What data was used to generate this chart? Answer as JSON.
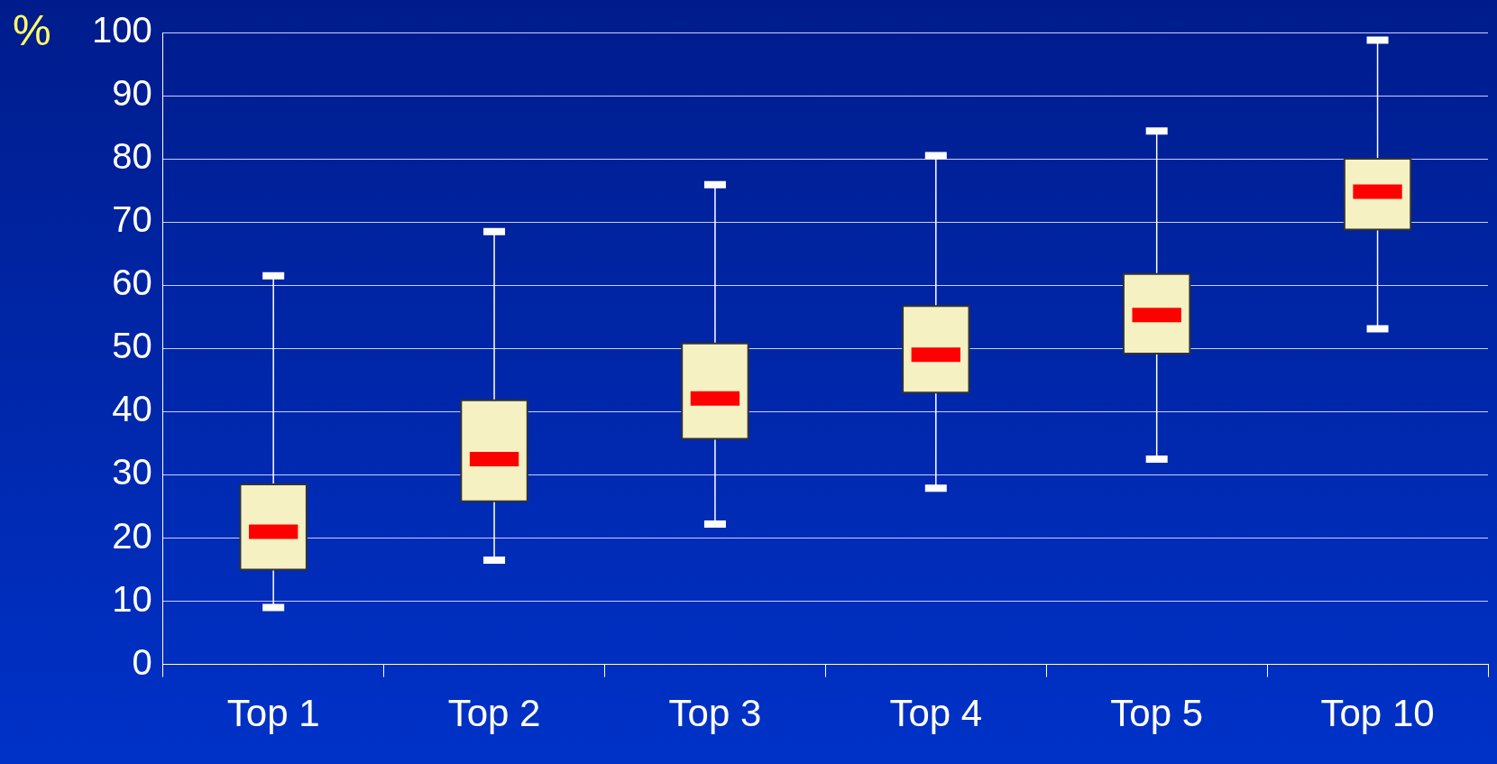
{
  "chart_data": {
    "type": "box",
    "ylabel": "%",
    "categories": [
      "Top 1",
      "Top 2",
      "Top 3",
      "Top 4",
      "Top 5",
      "Top 10"
    ],
    "series": [
      {
        "color": "#f5f1c2",
        "boxes": [
          {
            "low": 9,
            "q1": 15,
            "median": 21,
            "q3": 28.5,
            "high": 61.5
          },
          {
            "low": 16.5,
            "q1": 25.8,
            "median": 32.5,
            "q3": 41.8,
            "high": 68.5
          },
          {
            "low": 22.2,
            "q1": 35.7,
            "median": 42.1,
            "q3": 50.8,
            "high": 75.9
          },
          {
            "low": 27.9,
            "q1": 43,
            "median": 49,
            "q3": 56.7,
            "high": 80.5
          },
          {
            "low": 32.5,
            "q1": 49.2,
            "median": 55.3,
            "q3": 61.8,
            "high": 84.4
          },
          {
            "low": 53.1,
            "q1": 68.8,
            "median": 74.8,
            "q3": 80,
            "high": 98.8
          }
        ]
      }
    ],
    "ylim": [
      0,
      100
    ],
    "yticks": [
      0,
      10,
      20,
      30,
      40,
      50,
      60,
      70,
      80,
      90,
      100
    ],
    "grid": "y"
  }
}
